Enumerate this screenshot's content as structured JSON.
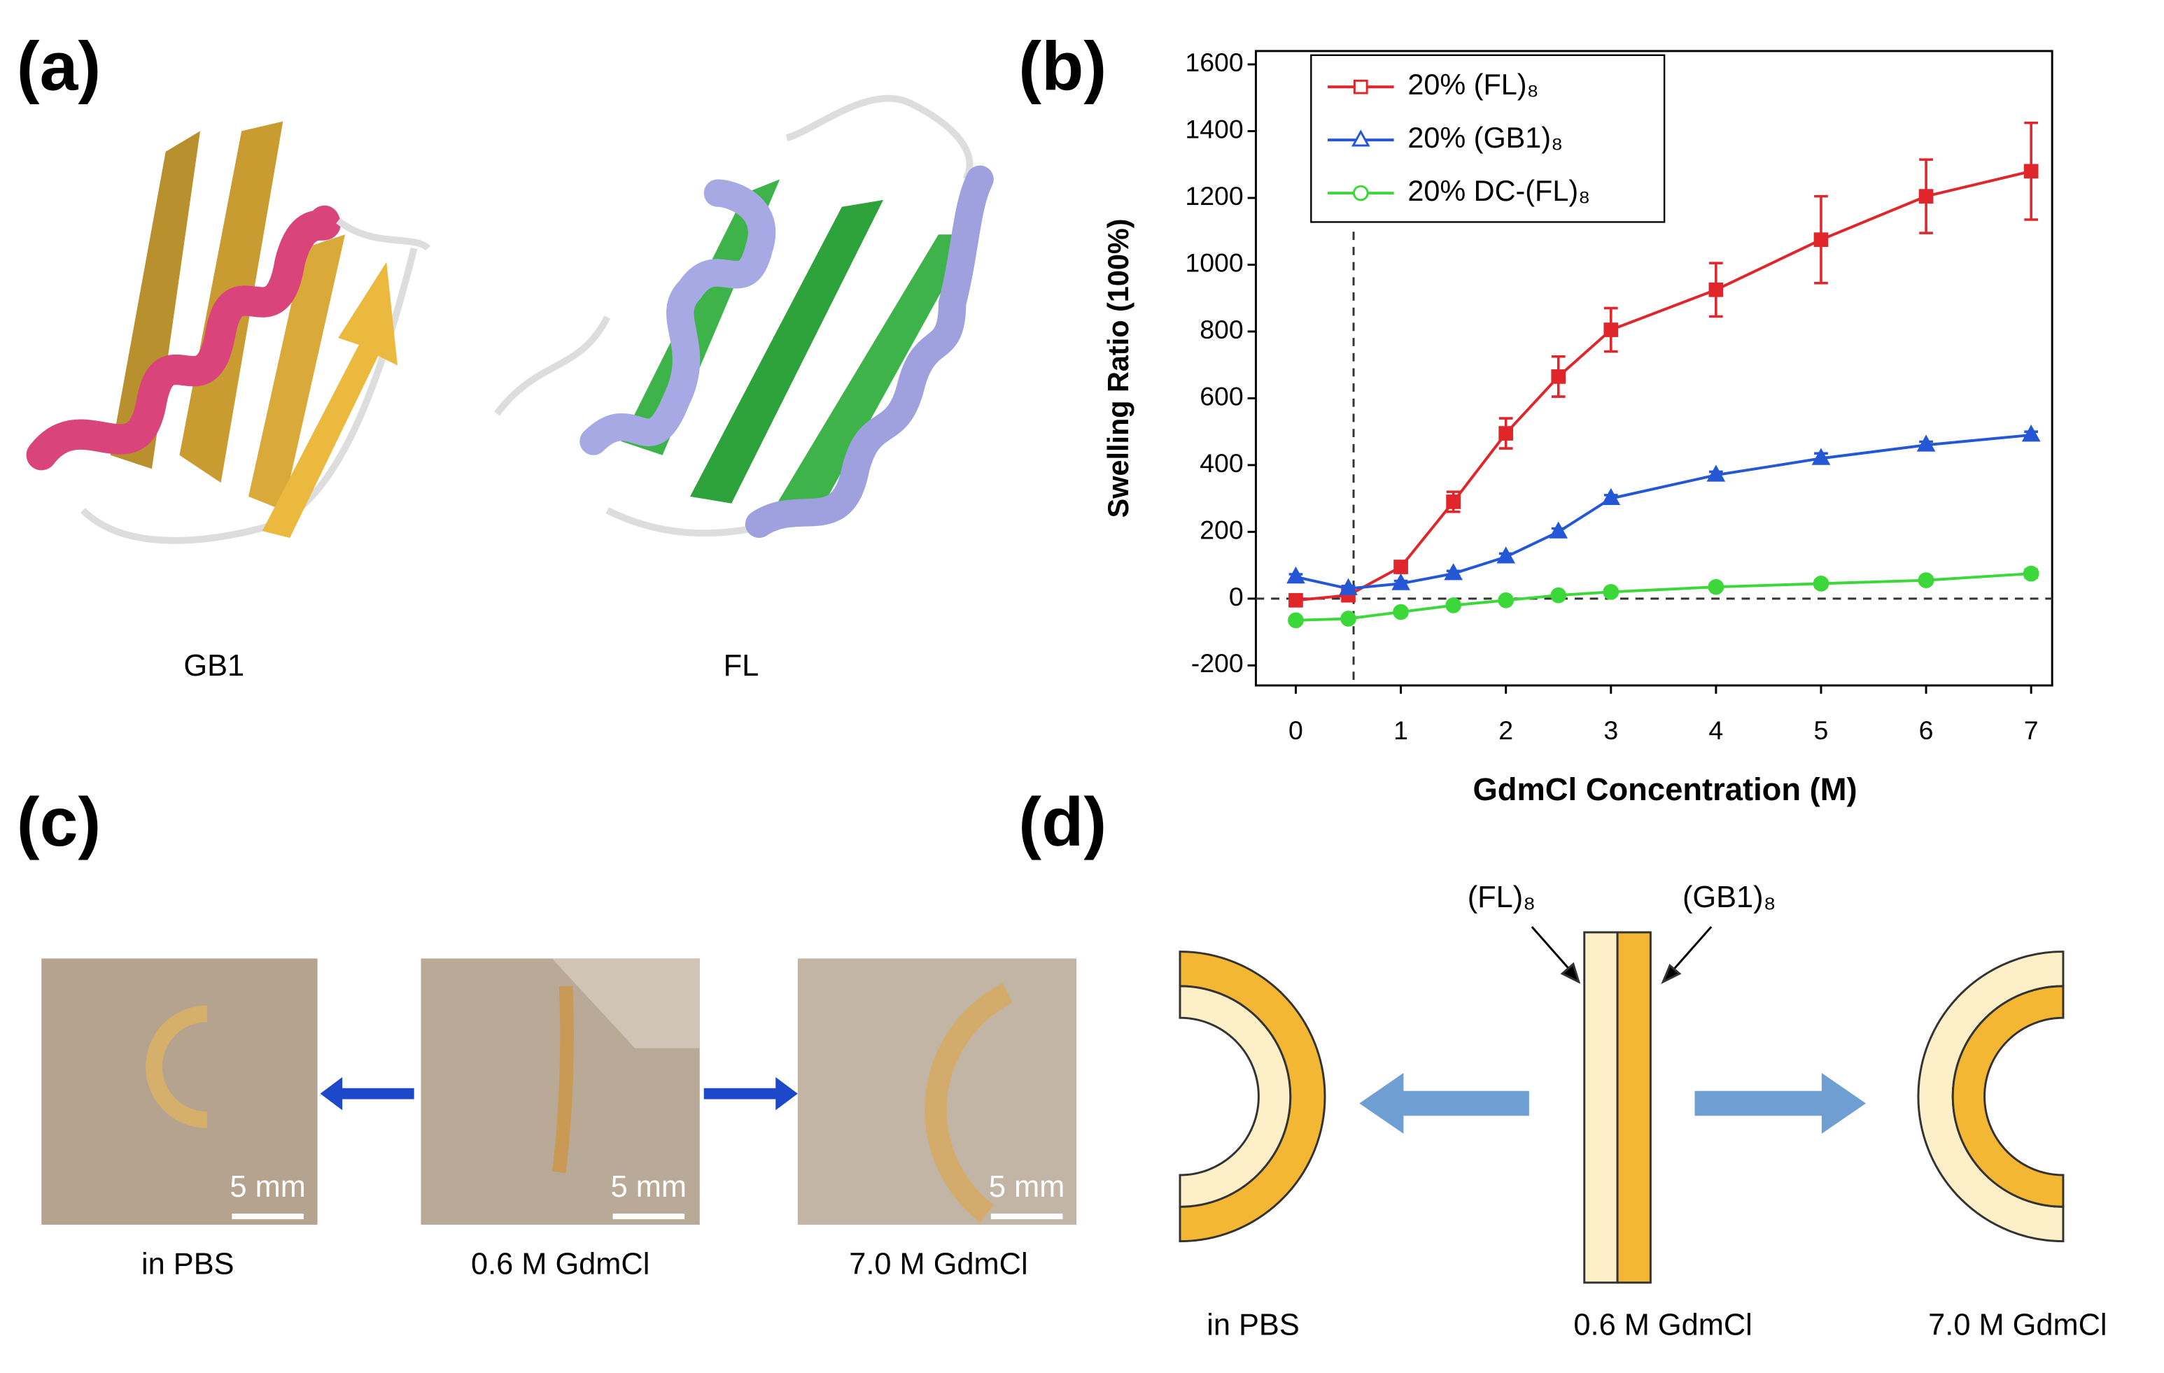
{
  "panel_labels": [
    "(a)",
    "(b)",
    "(c)",
    "(d)"
  ],
  "panel_a": {
    "labels": [
      "GB1",
      "FL"
    ]
  },
  "chart_data": {
    "type": "line",
    "y_label": "Swelling Ratio (100%)",
    "x_label": "GdmCl Concentration (M)",
    "x": [
      0,
      0.5,
      1,
      1.5,
      2,
      2.5,
      3,
      4,
      5,
      6,
      7
    ],
    "series": [
      {
        "name": "20% (FL)₈",
        "color": "#e0262a",
        "marker": "square",
        "values": [
          -5,
          10,
          95,
          290,
          495,
          665,
          805,
          925,
          1075,
          1205,
          1280
        ],
        "errors": [
          10,
          10,
          15,
          30,
          45,
          60,
          65,
          80,
          130,
          110,
          145
        ]
      },
      {
        "name": "20% (GB1)₈",
        "color": "#2457d6",
        "marker": "triangle",
        "values": [
          65,
          30,
          45,
          75,
          125,
          200,
          300,
          370,
          420,
          460,
          490
        ],
        "errors": [
          8,
          8,
          8,
          8,
          10,
          10,
          10,
          10,
          15,
          10,
          10
        ]
      },
      {
        "name": "20% DC-(FL)₈",
        "color": "#3cd83a",
        "marker": "circle",
        "values": [
          -65,
          -60,
          -40,
          -20,
          -5,
          10,
          20,
          35,
          45,
          55,
          75
        ],
        "errors": [
          8,
          8,
          8,
          8,
          8,
          8,
          10,
          8,
          10,
          10,
          12
        ]
      }
    ],
    "xlim": [
      -0.38,
      7.2
    ],
    "ylim": [
      -260,
      1640
    ],
    "xticks": [
      0,
      1,
      2,
      3,
      4,
      5,
      6,
      7
    ],
    "yticks": [
      -200,
      0,
      200,
      400,
      600,
      800,
      1000,
      1200,
      1400,
      1600
    ],
    "vline": 0.55,
    "hline": 0,
    "legend": "upper left"
  },
  "panel_c": {
    "captions": [
      "in PBS",
      "0.6 M GdmCl",
      "7.0 M GdmCl"
    ],
    "scale_bars": [
      "5 mm",
      "5 mm",
      "5 mm"
    ]
  },
  "panel_d": {
    "captions": [
      "in PBS",
      "0.6 M GdmCl",
      "7.0 M GdmCl"
    ],
    "layer_labels": [
      "(FL)₈",
      "(GB1)₈"
    ]
  }
}
